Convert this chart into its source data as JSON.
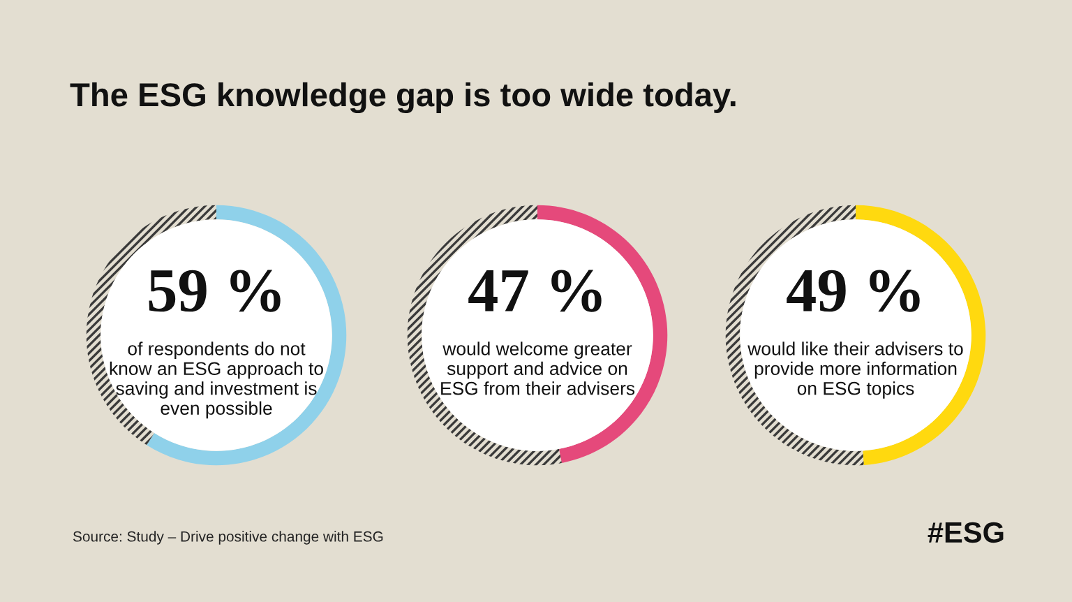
{
  "chart_data": [
    {
      "type": "other",
      "title": "The ESG knowledge gap is too wide today.",
      "annotations": [
        "Source: Study – Drive positive change with ESG",
        "#ESG"
      ]
    },
    {
      "type": "donut",
      "categories": [
        null,
        null
      ],
      "values": [
        59,
        41
      ],
      "colors": [
        "#8fd1ea",
        "#3a3a3a"
      ],
      "value_labels": [
        "59 %",
        null
      ],
      "annotations": [
        "of respondents do not know an ESG approach to saving and investment is even possible"
      ]
    },
    {
      "type": "donut",
      "categories": [
        null,
        null
      ],
      "values": [
        47,
        53
      ],
      "colors": [
        "#e5497b",
        "#3a3a3a"
      ],
      "value_labels": [
        "47 %",
        null
      ],
      "annotations": [
        "would welcome greater support and advice on ESG from their advisers"
      ]
    },
    {
      "type": "donut",
      "categories": [
        null,
        null
      ],
      "values": [
        49,
        51
      ],
      "colors": [
        "#ffd90f",
        "#3a3a3a"
      ],
      "value_labels": [
        "49 %",
        null
      ],
      "annotations": [
        "would like their advisers to provide more information on ESG topics"
      ]
    }
  ]
}
